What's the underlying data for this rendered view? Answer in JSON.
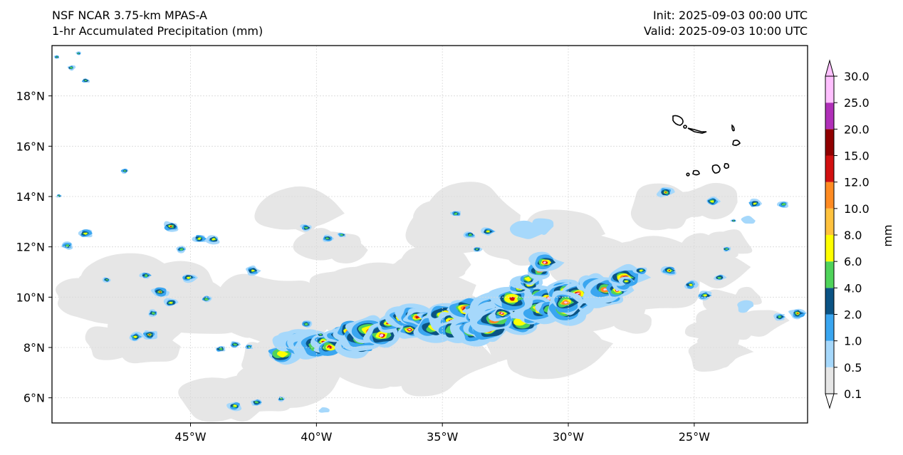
{
  "header": {
    "model": "NSF NCAR 3.75-km MPAS-A",
    "field": "1-hr Accumulated Precipitation (mm)",
    "init": "Init: 2025-09-03 00:00 UTC",
    "valid": "Valid: 2025-09-03 10:00 UTC"
  },
  "axes": {
    "lon_labels": [
      "45°W",
      "40°W",
      "35°W",
      "30°W",
      "25°W"
    ],
    "lat_labels": [
      "18°N",
      "16°N",
      "14°N",
      "12°N",
      "10°N",
      "8°N",
      "6°N"
    ],
    "lon_range": [
      -50.5,
      -20.5
    ],
    "lat_range": [
      5.0,
      20.0
    ]
  },
  "colorbar": {
    "unit_label": "mm",
    "levels": [
      "0.1",
      "0.5",
      "1.0",
      "2.0",
      "4.0",
      "6.0",
      "8.0",
      "10.0",
      "12.0",
      "15.0",
      "20.0",
      "25.0",
      "30.0"
    ],
    "colors": [
      "#e6e6e6",
      "#a6d8fb",
      "#3aa6f0",
      "#0b5384",
      "#4fd35a",
      "#ffff00",
      "#ffc23e",
      "#ff8b22",
      "#d11010",
      "#900000",
      "#b030b8",
      "#ffc0ff"
    ]
  },
  "colors": {
    "trace": "#e6e6e6",
    "light": "#a6d8fb",
    "mid": "#3aa6f0",
    "dark_blue": "#0b5384",
    "green": "#4fd35a",
    "yellow": "#ffff00",
    "orange": "#ff8b22",
    "red": "#d11010",
    "dark_red": "#900000",
    "magenta": "#b030b8",
    "pink": "#ffc0ff",
    "grid": "#d9d9d9",
    "coast": "#000000"
  }
}
